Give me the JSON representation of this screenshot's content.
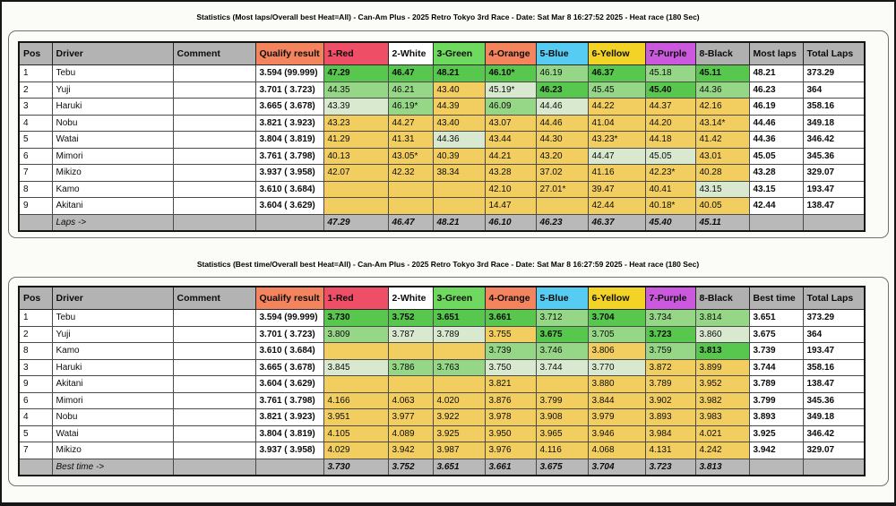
{
  "palette": {
    "header_gray": "#b3b3b3",
    "salmon": "#f4845e",
    "red": "#ee4e66",
    "white": "#ffffff",
    "green": "#6ed95e",
    "blue": "#56ccf2",
    "yellow": "#f4d327",
    "purple": "#cb59dd",
    "black_col": "#b0b0b0",
    "cell_best_green": "#58c74e",
    "cell_good_green": "#95d786",
    "cell_pale_green": "#d9e9d0",
    "cell_yellow": "#f2ce60",
    "summary_gray": "#b9b9b9"
  },
  "tables": [
    {
      "title": "Statistics (Most laps/Overall best Heat=All) - Can-Am Plus - 2025 Retro Tokyo 3rd Race - Date: Sat Mar 8 16:27:52 2025 - Heat race (180 Sec)",
      "columns": [
        {
          "label": "Pos",
          "color": "header_gray"
        },
        {
          "label": "Driver",
          "color": "header_gray"
        },
        {
          "label": "Comment",
          "color": "header_gray"
        },
        {
          "label": "Qualify result",
          "color": "salmon"
        },
        {
          "label": "1-Red",
          "color": "red"
        },
        {
          "label": "2-White",
          "color": "white"
        },
        {
          "label": "3-Green",
          "color": "green"
        },
        {
          "label": "4-Orange",
          "color": "salmon"
        },
        {
          "label": "5-Blue",
          "color": "blue"
        },
        {
          "label": "6-Yellow",
          "color": "yellow"
        },
        {
          "label": "7-Purple",
          "color": "purple"
        },
        {
          "label": "8-Black",
          "color": "black_col"
        },
        {
          "label": "Most laps",
          "color": "header_gray"
        },
        {
          "label": "Total Laps",
          "color": "header_gray"
        }
      ],
      "rows": [
        {
          "pos": "1",
          "driver": "Tebu",
          "comment": "",
          "qualify": "3.594 (99.999)",
          "heats": [
            {
              "v": "47.29",
              "c": "g2"
            },
            {
              "v": "46.47",
              "c": "g2"
            },
            {
              "v": "48.21",
              "c": "g2"
            },
            {
              "v": "46.10*",
              "c": "g2"
            },
            {
              "v": "46.19",
              "c": "g1"
            },
            {
              "v": "46.37",
              "c": "g2"
            },
            {
              "v": "45.18",
              "c": "g1"
            },
            {
              "v": "45.11",
              "c": "g2"
            }
          ],
          "best": "48.21",
          "total": "373.29"
        },
        {
          "pos": "2",
          "driver": "Yuji",
          "comment": "",
          "qualify": "3.701 ( 3.723)",
          "heats": [
            {
              "v": "44.35",
              "c": "g1"
            },
            {
              "v": "46.21",
              "c": "g1"
            },
            {
              "v": "43.40",
              "c": "y"
            },
            {
              "v": "45.19*",
              "c": "g0"
            },
            {
              "v": "46.23",
              "c": "g2"
            },
            {
              "v": "45.45",
              "c": "g1"
            },
            {
              "v": "45.40",
              "c": "g2"
            },
            {
              "v": "44.36",
              "c": "g1"
            }
          ],
          "best": "46.23",
          "total": "364"
        },
        {
          "pos": "3",
          "driver": "Haruki",
          "comment": "",
          "qualify": "3.665 ( 3.678)",
          "heats": [
            {
              "v": "43.39",
              "c": "g0"
            },
            {
              "v": "46.19*",
              "c": "g1"
            },
            {
              "v": "44.39",
              "c": "y"
            },
            {
              "v": "46.09",
              "c": "g1"
            },
            {
              "v": "44.46",
              "c": "g0"
            },
            {
              "v": "44.22",
              "c": "y"
            },
            {
              "v": "44.37",
              "c": "y"
            },
            {
              "v": "42.16",
              "c": "y"
            }
          ],
          "best": "46.19",
          "total": "358.16"
        },
        {
          "pos": "4",
          "driver": "Nobu",
          "comment": "",
          "qualify": "3.821 ( 3.923)",
          "heats": [
            {
              "v": "43.23",
              "c": "y"
            },
            {
              "v": "44.27",
              "c": "y"
            },
            {
              "v": "43.40",
              "c": "y"
            },
            {
              "v": "43.07",
              "c": "y"
            },
            {
              "v": "44.46",
              "c": "y"
            },
            {
              "v": "41.04",
              "c": "y"
            },
            {
              "v": "44.20",
              "c": "y"
            },
            {
              "v": "43.14*",
              "c": "y"
            }
          ],
          "best": "44.46",
          "total": "349.18"
        },
        {
          "pos": "5",
          "driver": "Watai",
          "comment": "",
          "qualify": "3.804 ( 3.819)",
          "heats": [
            {
              "v": "41.29",
              "c": "y"
            },
            {
              "v": "41.31",
              "c": "y"
            },
            {
              "v": "44.36",
              "c": "g0"
            },
            {
              "v": "43.44",
              "c": "y"
            },
            {
              "v": "44.30",
              "c": "y"
            },
            {
              "v": "43.23*",
              "c": "y"
            },
            {
              "v": "44.18",
              "c": "y"
            },
            {
              "v": "41.42",
              "c": "y"
            }
          ],
          "best": "44.36",
          "total": "346.42"
        },
        {
          "pos": "6",
          "driver": "Mimori",
          "comment": "",
          "qualify": "3.761 ( 3.798)",
          "heats": [
            {
              "v": "40.13",
              "c": "y"
            },
            {
              "v": "43.05*",
              "c": "y"
            },
            {
              "v": "40.39",
              "c": "y"
            },
            {
              "v": "44.21",
              "c": "y"
            },
            {
              "v": "43.20",
              "c": "y"
            },
            {
              "v": "44.47",
              "c": "g0"
            },
            {
              "v": "45.05",
              "c": "g0"
            },
            {
              "v": "43.01",
              "c": "y"
            }
          ],
          "best": "45.05",
          "total": "345.36"
        },
        {
          "pos": "7",
          "driver": "Mikizo",
          "comment": "",
          "qualify": "3.937 ( 3.958)",
          "heats": [
            {
              "v": "42.07",
              "c": "y"
            },
            {
              "v": "42.32",
              "c": "y"
            },
            {
              "v": "38.34",
              "c": "y"
            },
            {
              "v": "43.28",
              "c": "y"
            },
            {
              "v": "37.02",
              "c": "y"
            },
            {
              "v": "41.16",
              "c": "y"
            },
            {
              "v": "42.23*",
              "c": "y"
            },
            {
              "v": "40.28",
              "c": "y"
            }
          ],
          "best": "43.28",
          "total": "329.07"
        },
        {
          "pos": "8",
          "driver": "Kamo",
          "comment": "",
          "qualify": "3.610 ( 3.684)",
          "heats": [
            {
              "v": "",
              "c": "y"
            },
            {
              "v": "",
              "c": "y"
            },
            {
              "v": "",
              "c": "y"
            },
            {
              "v": "42.10",
              "c": "y"
            },
            {
              "v": "27.01*",
              "c": "y"
            },
            {
              "v": "39.47",
              "c": "y"
            },
            {
              "v": "40.41",
              "c": "y"
            },
            {
              "v": "43.15",
              "c": "g0"
            }
          ],
          "best": "43.15",
          "total": "193.47"
        },
        {
          "pos": "9",
          "driver": "Akitani",
          "comment": "",
          "qualify": "3.604 ( 3.629)",
          "heats": [
            {
              "v": "",
              "c": "y"
            },
            {
              "v": "",
              "c": "y"
            },
            {
              "v": "",
              "c": "y"
            },
            {
              "v": "14.47",
              "c": "y"
            },
            {
              "v": "",
              "c": "y"
            },
            {
              "v": "42.44",
              "c": "y"
            },
            {
              "v": "40.18*",
              "c": "y"
            },
            {
              "v": "40.05",
              "c": "y"
            }
          ],
          "best": "42.44",
          "total": "138.47"
        }
      ],
      "summary_label": "Laps ->",
      "summary": [
        "47.29",
        "46.47",
        "48.21",
        "46.10",
        "46.23",
        "46.37",
        "45.40",
        "45.11"
      ]
    },
    {
      "title": "Statistics (Best time/Overall best Heat=All) - Can-Am Plus - 2025 Retro Tokyo 3rd Race - Date: Sat Mar 8 16:27:59 2025 - Heat race (180 Sec)",
      "columns": [
        {
          "label": "Pos",
          "color": "header_gray"
        },
        {
          "label": "Driver",
          "color": "header_gray"
        },
        {
          "label": "Comment",
          "color": "header_gray"
        },
        {
          "label": "Qualify result",
          "color": "salmon"
        },
        {
          "label": "1-Red",
          "color": "red"
        },
        {
          "label": "2-White",
          "color": "white"
        },
        {
          "label": "3-Green",
          "color": "green"
        },
        {
          "label": "4-Orange",
          "color": "salmon"
        },
        {
          "label": "5-Blue",
          "color": "blue"
        },
        {
          "label": "6-Yellow",
          "color": "yellow"
        },
        {
          "label": "7-Purple",
          "color": "purple"
        },
        {
          "label": "8-Black",
          "color": "black_col"
        },
        {
          "label": "Best time",
          "color": "header_gray"
        },
        {
          "label": "Total Laps",
          "color": "header_gray"
        }
      ],
      "rows": [
        {
          "pos": "1",
          "driver": "Tebu",
          "comment": "",
          "qualify": "3.594 (99.999)",
          "heats": [
            {
              "v": "3.730",
              "c": "g2"
            },
            {
              "v": "3.752",
              "c": "g2"
            },
            {
              "v": "3.651",
              "c": "g2"
            },
            {
              "v": "3.661",
              "c": "g2"
            },
            {
              "v": "3.712",
              "c": "g1"
            },
            {
              "v": "3.704",
              "c": "g2"
            },
            {
              "v": "3.734",
              "c": "g1"
            },
            {
              "v": "3.814",
              "c": "g1"
            }
          ],
          "best": "3.651",
          "total": "373.29"
        },
        {
          "pos": "2",
          "driver": "Yuji",
          "comment": "",
          "qualify": "3.701 ( 3.723)",
          "heats": [
            {
              "v": "3.809",
              "c": "g1"
            },
            {
              "v": "3.787",
              "c": "g0"
            },
            {
              "v": "3.789",
              "c": "g0"
            },
            {
              "v": "3.755",
              "c": "y"
            },
            {
              "v": "3.675",
              "c": "g2"
            },
            {
              "v": "3.705",
              "c": "g1"
            },
            {
              "v": "3.723",
              "c": "g2"
            },
            {
              "v": "3.860",
              "c": "g0"
            }
          ],
          "best": "3.675",
          "total": "364"
        },
        {
          "pos": "8",
          "driver": "Kamo",
          "comment": "",
          "qualify": "3.610 ( 3.684)",
          "heats": [
            {
              "v": "",
              "c": "y"
            },
            {
              "v": "",
              "c": "y"
            },
            {
              "v": "",
              "c": "y"
            },
            {
              "v": "3.739",
              "c": "g1"
            },
            {
              "v": "3.746",
              "c": "g1"
            },
            {
              "v": "3.806",
              "c": "y"
            },
            {
              "v": "3.759",
              "c": "g1"
            },
            {
              "v": "3.813",
              "c": "g2"
            }
          ],
          "best": "3.739",
          "total": "193.47"
        },
        {
          "pos": "3",
          "driver": "Haruki",
          "comment": "",
          "qualify": "3.665 ( 3.678)",
          "heats": [
            {
              "v": "3.845",
              "c": "g0"
            },
            {
              "v": "3.786",
              "c": "g1"
            },
            {
              "v": "3.763",
              "c": "g1"
            },
            {
              "v": "3.750",
              "c": "g0"
            },
            {
              "v": "3.744",
              "c": "g0"
            },
            {
              "v": "3.770",
              "c": "g0"
            },
            {
              "v": "3.872",
              "c": "y"
            },
            {
              "v": "3.899",
              "c": "y"
            }
          ],
          "best": "3.744",
          "total": "358.16"
        },
        {
          "pos": "9",
          "driver": "Akitani",
          "comment": "",
          "qualify": "3.604 ( 3.629)",
          "heats": [
            {
              "v": "",
              "c": "y"
            },
            {
              "v": "",
              "c": "y"
            },
            {
              "v": "",
              "c": "y"
            },
            {
              "v": "3.821",
              "c": "y"
            },
            {
              "v": "",
              "c": "y"
            },
            {
              "v": "3.880",
              "c": "y"
            },
            {
              "v": "3.789",
              "c": "y"
            },
            {
              "v": "3.952",
              "c": "y"
            }
          ],
          "best": "3.789",
          "total": "138.47"
        },
        {
          "pos": "6",
          "driver": "Mimori",
          "comment": "",
          "qualify": "3.761 ( 3.798)",
          "heats": [
            {
              "v": "4.166",
              "c": "y"
            },
            {
              "v": "4.063",
              "c": "y"
            },
            {
              "v": "4.020",
              "c": "y"
            },
            {
              "v": "3.876",
              "c": "y"
            },
            {
              "v": "3.799",
              "c": "y"
            },
            {
              "v": "3.844",
              "c": "y"
            },
            {
              "v": "3.902",
              "c": "y"
            },
            {
              "v": "3.982",
              "c": "y"
            }
          ],
          "best": "3.799",
          "total": "345.36"
        },
        {
          "pos": "4",
          "driver": "Nobu",
          "comment": "",
          "qualify": "3.821 ( 3.923)",
          "heats": [
            {
              "v": "3.951",
              "c": "y"
            },
            {
              "v": "3.977",
              "c": "y"
            },
            {
              "v": "3.922",
              "c": "y"
            },
            {
              "v": "3.978",
              "c": "y"
            },
            {
              "v": "3.908",
              "c": "y"
            },
            {
              "v": "3.979",
              "c": "y"
            },
            {
              "v": "3.893",
              "c": "y"
            },
            {
              "v": "3.983",
              "c": "y"
            }
          ],
          "best": "3.893",
          "total": "349.18"
        },
        {
          "pos": "5",
          "driver": "Watai",
          "comment": "",
          "qualify": "3.804 ( 3.819)",
          "heats": [
            {
              "v": "4.105",
              "c": "y"
            },
            {
              "v": "4.089",
              "c": "y"
            },
            {
              "v": "3.925",
              "c": "y"
            },
            {
              "v": "3.950",
              "c": "y"
            },
            {
              "v": "3.965",
              "c": "y"
            },
            {
              "v": "3.946",
              "c": "y"
            },
            {
              "v": "3.984",
              "c": "y"
            },
            {
              "v": "4.021",
              "c": "y"
            }
          ],
          "best": "3.925",
          "total": "346.42"
        },
        {
          "pos": "7",
          "driver": "Mikizo",
          "comment": "",
          "qualify": "3.937 ( 3.958)",
          "heats": [
            {
              "v": "4.029",
              "c": "y"
            },
            {
              "v": "3.942",
              "c": "y"
            },
            {
              "v": "3.987",
              "c": "y"
            },
            {
              "v": "3.976",
              "c": "y"
            },
            {
              "v": "4.116",
              "c": "y"
            },
            {
              "v": "4.068",
              "c": "y"
            },
            {
              "v": "4.131",
              "c": "y"
            },
            {
              "v": "4.242",
              "c": "y"
            }
          ],
          "best": "3.942",
          "total": "329.07"
        }
      ],
      "summary_label": "Best time ->",
      "summary": [
        "3.730",
        "3.752",
        "3.651",
        "3.661",
        "3.675",
        "3.704",
        "3.723",
        "3.813"
      ]
    }
  ]
}
